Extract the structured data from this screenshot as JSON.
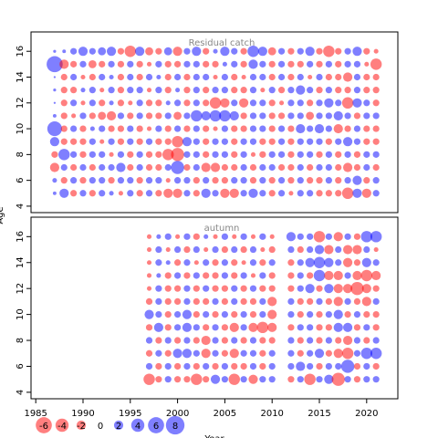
{
  "chart_data": [
    {
      "type": "bubble",
      "title": "Residual catch",
      "x": [
        1987,
        1988,
        1989,
        1990,
        1991,
        1992,
        1993,
        1994,
        1995,
        1996,
        1997,
        1998,
        1999,
        2000,
        2001,
        2002,
        2003,
        2004,
        2005,
        2006,
        2007,
        2008,
        2009,
        2010,
        2011,
        2012,
        2013,
        2014,
        2015,
        2016,
        2017,
        2018,
        2019,
        2020,
        2021
      ],
      "rows": [
        {
          "y": 16,
          "values": [
            0.2,
            0.3,
            1,
            2,
            1,
            1.5,
            2,
            -1,
            -3,
            2,
            -1.5,
            -1,
            1.5,
            -2,
            1,
            2,
            -1,
            0.5,
            2,
            1,
            -1,
            3,
            2,
            -1.5,
            1,
            -1,
            1,
            2,
            -1,
            -3,
            -1,
            1,
            2,
            -1,
            -0.5
          ]
        },
        {
          "y": 15,
          "values": [
            6,
            -2,
            -1,
            1,
            -1.5,
            -1,
            1,
            -1,
            1,
            -1,
            -0.5,
            1,
            -1,
            -1,
            1,
            1,
            -1,
            -1,
            0.5,
            1,
            -1,
            2,
            1,
            -1,
            1,
            -1,
            -1,
            1,
            -1,
            1,
            -1,
            1,
            1,
            -0.5,
            -3
          ]
        },
        {
          "y": 14,
          "values": [
            0.1,
            -1,
            1,
            -0.5,
            -1,
            1,
            0.5,
            -1,
            1,
            -1,
            1,
            0.5,
            -1,
            1,
            -1,
            1,
            1,
            -0.5,
            1,
            -1,
            -0.5,
            1,
            1,
            -1,
            1,
            -1,
            1,
            -0.5,
            1,
            -1,
            -1,
            -2,
            1,
            -1,
            -1
          ]
        },
        {
          "y": 13,
          "values": [
            0.2,
            -1,
            -1,
            0.5,
            1,
            -0.5,
            1,
            -1,
            1,
            1,
            -0.5,
            1,
            -1,
            0.5,
            -1,
            1,
            -1,
            1,
            1,
            -1,
            -1,
            1,
            -0.5,
            1,
            -1,
            1,
            2,
            1,
            -1,
            1,
            -1,
            -1,
            1,
            -1,
            -1
          ]
        },
        {
          "y": 12,
          "values": [
            0.1,
            -1,
            1,
            -0.5,
            1,
            -1,
            0.5,
            -1,
            -0.5,
            1,
            -1,
            -1,
            0.5,
            1,
            -1,
            1,
            -1,
            -3,
            -2,
            1,
            -2,
            1,
            1,
            -1,
            -0.5,
            1,
            1,
            -1,
            1,
            2,
            1,
            -3,
            2,
            1,
            -1
          ]
        },
        {
          "y": 11,
          "values": [
            0.3,
            -1,
            -0.5,
            1,
            -1,
            -1.5,
            -2,
            1,
            -1,
            1,
            -1,
            -1,
            1,
            -1.5,
            1,
            3,
            2,
            3,
            3,
            2,
            -1,
            1,
            1,
            -1,
            -1,
            1,
            1,
            -1.5,
            1,
            1,
            2,
            1,
            -1,
            1,
            1
          ]
        },
        {
          "y": 10,
          "values": [
            5,
            -1,
            1,
            -1,
            0.5,
            1,
            -1,
            -1,
            1,
            -1,
            -0.5,
            1,
            -1,
            1,
            -1,
            1,
            -1,
            -0.5,
            1,
            -1,
            -1,
            1,
            1,
            -1,
            1,
            -1,
            2,
            1,
            2,
            1,
            -2,
            -1,
            1,
            -1,
            -1
          ]
        },
        {
          "y": 9,
          "values": [
            2,
            -1,
            -1,
            -1,
            1,
            -0.5,
            1,
            -1,
            1,
            -1,
            1,
            -1,
            -1,
            -3,
            2,
            1,
            -1,
            1,
            1,
            -1,
            1,
            1,
            -1,
            -1,
            1,
            -1,
            1,
            1,
            1,
            -1,
            1,
            2,
            1,
            -1,
            -1
          ]
        },
        {
          "y": 8,
          "values": [
            -1,
            3,
            1,
            -1,
            1,
            1,
            -0.5,
            1,
            -1,
            1,
            -1,
            -1,
            -3,
            -4,
            1,
            1,
            -1,
            1,
            1,
            -1,
            1,
            -0.5,
            -1,
            1,
            1,
            -1,
            1,
            1,
            -1,
            1,
            -1,
            1,
            -1,
            1,
            1
          ]
        },
        {
          "y": 7,
          "values": [
            -2,
            1,
            -1,
            1,
            -1,
            1,
            1,
            2,
            -1,
            1,
            -1,
            -1,
            1,
            4,
            -1,
            1,
            -2,
            -2,
            -1,
            -1,
            1,
            -1,
            1,
            1,
            -1,
            -1,
            1,
            -1,
            1,
            1,
            -1,
            -2,
            -1,
            1,
            -1
          ]
        },
        {
          "y": 6,
          "values": [
            0.5,
            -1,
            1,
            -1,
            1,
            1,
            -1,
            1,
            1,
            -1,
            1,
            1,
            -0.5,
            1,
            1,
            -1,
            1,
            -1,
            -1,
            1,
            1,
            -1,
            1,
            -1,
            1,
            -1,
            1,
            -1,
            -1,
            1,
            -1,
            1,
            2,
            -1,
            1
          ]
        },
        {
          "y": 5,
          "values": [
            0.3,
            2,
            -1,
            1,
            -1,
            1,
            0.5,
            -0.5,
            1,
            -1,
            1,
            -1,
            -2,
            -2,
            1,
            -1,
            2,
            1,
            -2,
            -2,
            1,
            2,
            1,
            -1,
            1,
            -0.5,
            1,
            1,
            -1,
            -1,
            -1,
            -3,
            2,
            -2,
            1
          ]
        }
      ],
      "xlim": [
        1984.5,
        2023.3
      ],
      "ylim": [
        3.5,
        17.5
      ],
      "yticks": [
        4,
        6,
        8,
        10,
        12,
        14,
        16
      ],
      "neg_color": "#ff0000",
      "pos_color": "#0000ff"
    },
    {
      "type": "bubble",
      "title": "autumn",
      "x": [
        1997,
        1998,
        1999,
        2000,
        2001,
        2002,
        2003,
        2004,
        2005,
        2006,
        2007,
        2008,
        2009,
        2010,
        2011,
        2012,
        2013,
        2014,
        2015,
        2016,
        2017,
        2018,
        2019,
        2020,
        2021
      ],
      "rows": [
        {
          "y": 16,
          "values": [
            -0.5,
            0.5,
            1,
            -0.5,
            1,
            -1,
            0.5,
            -0.5,
            1,
            -0.5,
            1,
            -0.5,
            1,
            -0.5,
            null,
            2,
            1,
            1,
            -3,
            1,
            -2,
            1,
            -1,
            3,
            3
          ]
        },
        {
          "y": 15,
          "values": [
            -0.5,
            1,
            -0.5,
            1,
            -1,
            1,
            -0.5,
            1,
            -1,
            1,
            -1,
            1,
            -0.5,
            -1,
            null,
            1,
            -1,
            1,
            2,
            -2,
            1,
            -2,
            -2,
            1,
            -0.5
          ]
        },
        {
          "y": 14,
          "values": [
            -0.5,
            1,
            0.5,
            -1,
            1,
            -0.5,
            1,
            -1,
            1,
            -1,
            -0.5,
            1,
            -1,
            1,
            null,
            -1,
            1,
            2,
            3,
            2,
            1,
            -2,
            -1,
            2,
            1
          ]
        },
        {
          "y": 13,
          "values": [
            -0.5,
            0.5,
            -1,
            1,
            -1,
            1,
            -1,
            -1,
            1,
            -1,
            1,
            -0.5,
            1,
            -1,
            null,
            -1,
            1,
            -1,
            3,
            -2,
            -2,
            1,
            -2,
            -3,
            -2
          ]
        },
        {
          "y": 12,
          "values": [
            -0.5,
            1,
            -1,
            -1,
            1,
            -1,
            1,
            -1,
            -1,
            1,
            -1,
            1,
            -1,
            -1,
            null,
            -1,
            1,
            2,
            -1,
            2,
            -2,
            -2,
            -4,
            -2,
            -1
          ]
        },
        {
          "y": 11,
          "values": [
            -1,
            1,
            -1,
            -1,
            1,
            -1,
            -1,
            1,
            -1,
            1,
            -1,
            -1,
            1,
            -2,
            null,
            1,
            -1,
            -1,
            1,
            -1,
            -2,
            1,
            -1,
            -2,
            1
          ]
        },
        {
          "y": 10,
          "values": [
            2,
            1,
            -1,
            1,
            2,
            -1,
            1,
            -1,
            1,
            -1,
            1,
            -1,
            1,
            -2,
            null,
            1,
            -1,
            1,
            -1,
            1,
            2,
            -1,
            1,
            -1,
            -1
          ]
        },
        {
          "y": 9,
          "values": [
            -1,
            2,
            -1,
            1,
            2,
            1,
            -1,
            1,
            -1,
            -2,
            1,
            -2,
            -3,
            -2,
            null,
            -1,
            1,
            1,
            -1,
            -1,
            2,
            2,
            -1,
            1,
            -1
          ]
        },
        {
          "y": 8,
          "values": [
            1,
            -1,
            1,
            -1,
            1,
            -1,
            -2,
            1,
            -1,
            1,
            -1,
            1,
            -1,
            -1,
            null,
            1,
            -1,
            1,
            -1,
            1,
            -1,
            -2,
            1,
            -1,
            1
          ]
        },
        {
          "y": 7,
          "values": [
            -1,
            1,
            -1,
            2,
            2,
            1,
            -2,
            1,
            -1,
            -2,
            1,
            1,
            -1,
            1,
            null,
            1,
            -1,
            1,
            2,
            -1,
            -2,
            -3,
            1,
            3,
            3
          ]
        },
        {
          "y": 6,
          "values": [
            1,
            -1,
            1,
            -1,
            1,
            -1,
            1,
            -1,
            1,
            -1,
            -1,
            1,
            -1,
            1,
            null,
            1,
            2,
            1,
            -1,
            1,
            1,
            4,
            -1,
            1,
            -1
          ]
        },
        {
          "y": 5,
          "values": [
            -3,
            -1,
            1,
            -1,
            -1,
            -3,
            -1,
            2,
            1,
            -3,
            1,
            -2,
            1,
            1,
            null,
            -1,
            1,
            -3,
            1,
            2,
            -4,
            1,
            -1,
            1,
            1
          ]
        }
      ],
      "xlim": [
        1984.5,
        2023.3
      ],
      "ylim": [
        3.5,
        17.5
      ],
      "yticks": [
        4,
        6,
        8,
        10,
        12,
        14,
        16
      ],
      "xticks": [
        1985,
        1990,
        1995,
        2000,
        2005,
        2010,
        2015,
        2020
      ],
      "x_label": "Year",
      "neg_color": "#ff0000",
      "pos_color": "#0000ff"
    }
  ],
  "legend": {
    "values": [
      -6,
      -4,
      -2,
      0,
      2,
      4,
      6,
      8
    ]
  },
  "y_label": "Age"
}
